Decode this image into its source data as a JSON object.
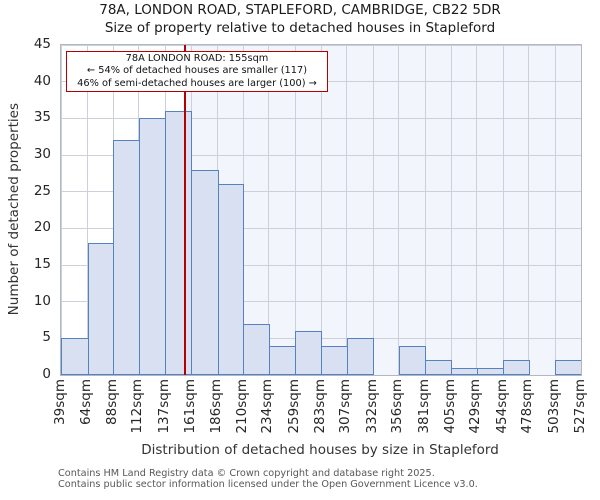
{
  "chart_data": {
    "type": "bar",
    "title": "78A, LONDON ROAD, STAPLEFORD, CAMBRIDGE, CB22 5DR",
    "subtitle": "Size of property relative to detached houses in Stapleford",
    "xlabel": "Distribution of detached houses by size in Stapleford",
    "ylabel": "Number of detached properties",
    "bin_edges_sqm": [
      39,
      64,
      88,
      112,
      137,
      161,
      186,
      210,
      234,
      259,
      283,
      307,
      332,
      356,
      381,
      405,
      429,
      454,
      478,
      503,
      527
    ],
    "x_tick_labels": [
      "39sqm",
      "64sqm",
      "88sqm",
      "112sqm",
      "137sqm",
      "161sqm",
      "186sqm",
      "210sqm",
      "234sqm",
      "259sqm",
      "283sqm",
      "307sqm",
      "332sqm",
      "356sqm",
      "381sqm",
      "405sqm",
      "429sqm",
      "454sqm",
      "478sqm",
      "503sqm",
      "527sqm"
    ],
    "values": [
      5,
      18,
      32,
      35,
      36,
      28,
      26,
      7,
      4,
      6,
      4,
      5,
      0,
      4,
      2,
      1,
      1,
      2,
      0,
      2
    ],
    "y_ticks": [
      0,
      5,
      10,
      15,
      20,
      25,
      30,
      35,
      40,
      45
    ],
    "ylim": [
      0,
      45
    ],
    "grid": true,
    "marker_value_sqm": 155,
    "annotation": {
      "line1": "78A LONDON ROAD: 155sqm",
      "line2": "← 54% of detached houses are smaller (117)",
      "line3": "46% of semi-detached houses are larger (100) →"
    },
    "colors": {
      "bar_fill": "#d8e0f2",
      "bar_edge": "#5582c3",
      "marker_line": "#b40000",
      "annotation_border": "#b40000",
      "shaded_region": "#f2f5fc",
      "grid_line": "#ccd0d8"
    }
  },
  "footer": {
    "line1": "Contains HM Land Registry data © Crown copyright and database right 2025.",
    "line2": "Contains public sector information licensed under the Open Government Licence v3.0."
  }
}
